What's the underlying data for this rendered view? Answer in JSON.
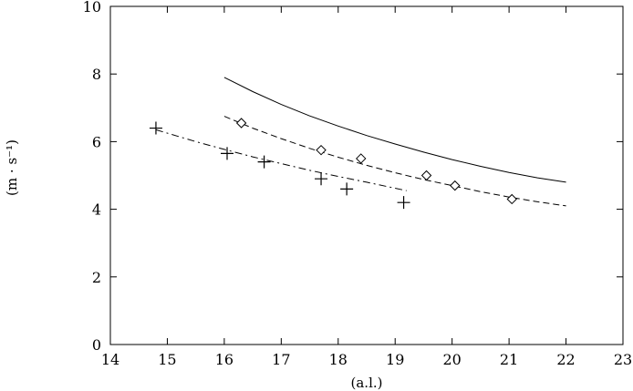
{
  "chart_data": {
    "type": "scatter",
    "title": "",
    "xlabel": "(a.l.)",
    "ylabel": "(m · s⁻¹)",
    "xlim": [
      14,
      23
    ],
    "ylim": [
      0,
      10
    ],
    "x_ticks": [
      14,
      15,
      16,
      17,
      18,
      19,
      20,
      21,
      22,
      23
    ],
    "y_ticks": [
      0,
      2,
      4,
      6,
      8,
      10
    ],
    "x_tick_labels": [
      "14",
      "15",
      "16",
      "17",
      "18",
      "19",
      "20",
      "21",
      "22",
      "23"
    ],
    "y_tick_labels": [
      "0",
      "2",
      "4",
      "6",
      "8",
      "10"
    ],
    "grid": false,
    "legend": "none",
    "series": [
      {
        "kind": "line",
        "style": "solid",
        "x": [
          16.0,
          16.5,
          17.0,
          17.5,
          18.0,
          18.5,
          19.0,
          19.5,
          20.0,
          20.5,
          21.0,
          21.5,
          22.0
        ],
        "y": [
          7.9,
          7.48,
          7.1,
          6.76,
          6.46,
          6.18,
          5.93,
          5.69,
          5.47,
          5.27,
          5.09,
          4.93,
          4.8
        ]
      },
      {
        "kind": "line",
        "style": "dashed",
        "x": [
          16.0,
          16.5,
          17.0,
          17.5,
          18.0,
          18.5,
          19.0,
          19.5,
          20.0,
          20.5,
          21.0,
          21.5,
          22.0
        ],
        "y": [
          6.75,
          6.4,
          6.09,
          5.8,
          5.54,
          5.3,
          5.08,
          4.88,
          4.7,
          4.52,
          4.36,
          4.22,
          4.1
        ]
      },
      {
        "kind": "line",
        "style": "dash-dot",
        "x": [
          14.8,
          15.5,
          16.0,
          16.5,
          17.0,
          17.5,
          18.0,
          18.5,
          19.2
        ],
        "y": [
          6.35,
          6.0,
          5.77,
          5.55,
          5.35,
          5.15,
          4.97,
          4.8,
          4.55
        ]
      },
      {
        "kind": "points",
        "marker": "diamond",
        "x": [
          16.3,
          17.7,
          18.4,
          19.55,
          20.05,
          21.05
        ],
        "y": [
          6.55,
          5.75,
          5.5,
          5.0,
          4.7,
          4.3
        ]
      },
      {
        "kind": "points",
        "marker": "plus",
        "x": [
          14.8,
          16.05,
          16.7,
          17.7,
          18.15,
          19.15
        ],
        "y": [
          6.4,
          5.65,
          5.4,
          4.9,
          4.6,
          4.2
        ]
      }
    ]
  }
}
